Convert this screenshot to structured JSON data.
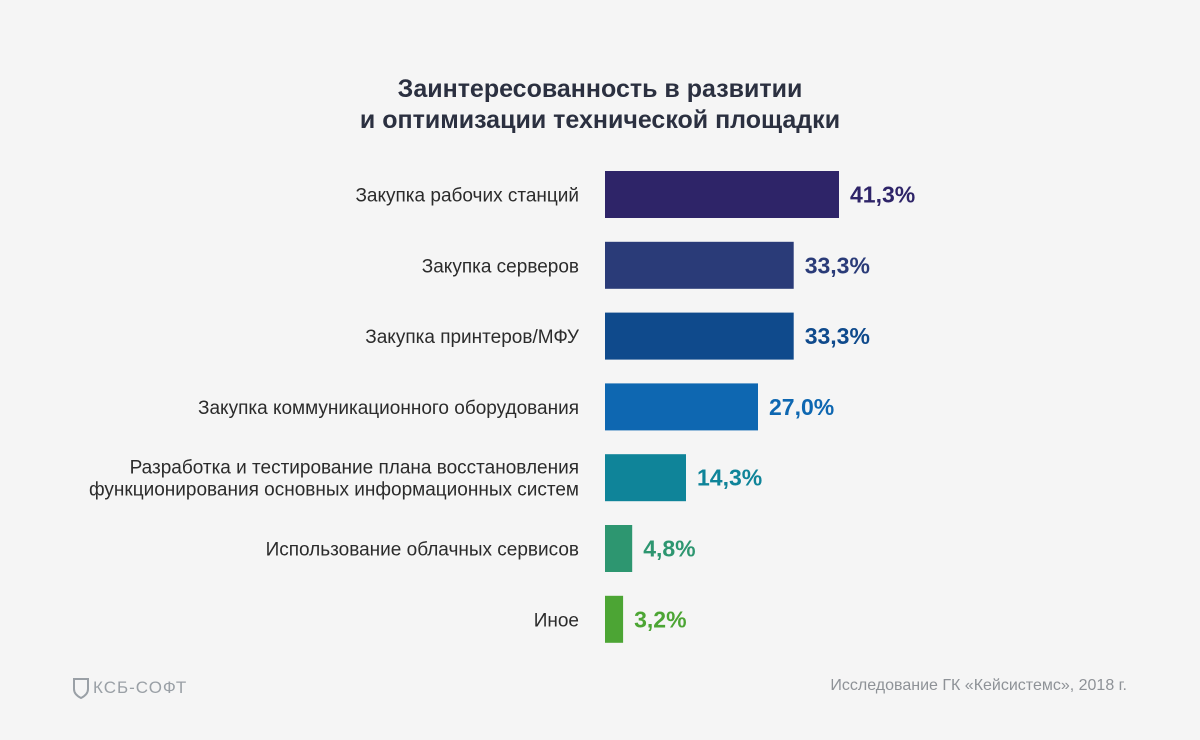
{
  "title_line1": "Заинтересованность в развитии",
  "title_line2": "и оптимизации технической площадки",
  "logo_text": "КСБ-СОФТ",
  "source": "Исследование ГК «Кейсистемс», 2018 г.",
  "chart_data": {
    "type": "bar",
    "orientation": "horizontal",
    "title": "Заинтересованность в развитии и оптимизации технической площадки",
    "categories": [
      [
        "Закупка рабочих станций"
      ],
      [
        "Закупка серверов"
      ],
      [
        "Закупка принтеров/МФУ"
      ],
      [
        "Закупка коммуникационного оборудования"
      ],
      [
        "Разработка и тестирование плана восстановления",
        "функционирования основных информационных систем"
      ],
      [
        "Использование облачных сервисов"
      ],
      [
        "Иное"
      ]
    ],
    "values": [
      41.3,
      33.3,
      33.3,
      27.0,
      14.3,
      4.8,
      3.2
    ],
    "value_labels": [
      "41,3%",
      "33,3%",
      "33,3%",
      "27,0%",
      "14,3%",
      "4,8%",
      "3,2%"
    ],
    "unit": "%",
    "bar_colors": [
      "#2e2468",
      "#2a3b78",
      "#0f4a8c",
      "#0e67b1",
      "#0f8499",
      "#2d9670",
      "#4ca534"
    ],
    "label_colors": [
      "#2e2468",
      "#2a3b78",
      "#0f4a8c",
      "#0e67b1",
      "#0f8499",
      "#2d9670",
      "#4ca534"
    ],
    "grid": false,
    "legend": "none"
  }
}
